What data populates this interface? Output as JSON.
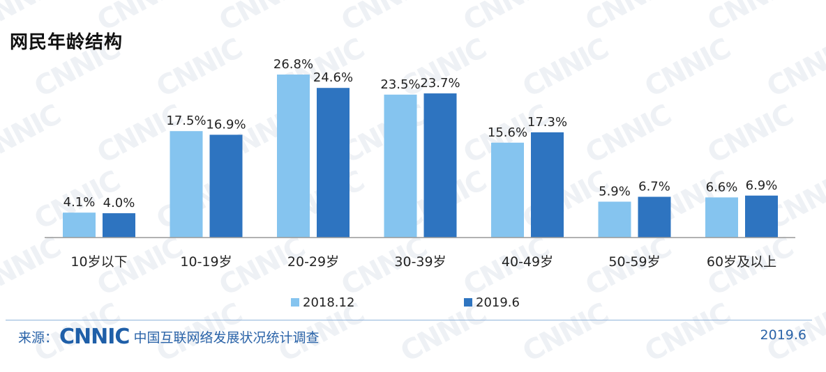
{
  "title": "网民年龄结构",
  "watermark": "CNNIC",
  "footer": {
    "source_label": "来源：",
    "logo_text": "CNNIC",
    "source_text": "中国互联网络发展状况统计调查",
    "date": "2019.6"
  },
  "colors": {
    "series1": "#85c4ef",
    "series2": "#2e74c0",
    "axis": "#999999",
    "footer": "#2a63a8"
  },
  "chart_data": {
    "type": "bar",
    "categories": [
      "10岁以下",
      "10-19岁",
      "20-29岁",
      "30-39岁",
      "40-49岁",
      "50-59岁",
      "60岁及以上"
    ],
    "series": [
      {
        "name": "2018.12",
        "values": [
          4.1,
          17.5,
          26.8,
          23.5,
          15.6,
          5.9,
          6.6
        ],
        "labels": [
          "4.1%",
          "17.5%",
          "26.8%",
          "23.5%",
          "15.6%",
          "5.9%",
          "6.6%"
        ]
      },
      {
        "name": "2019.6",
        "values": [
          4.0,
          16.9,
          24.6,
          23.7,
          17.3,
          6.7,
          6.9
        ],
        "labels": [
          "4.0%",
          "16.9%",
          "24.6%",
          "23.7%",
          "17.3%",
          "6.7%",
          "6.9%"
        ]
      }
    ],
    "ylim": [
      0,
      26.8
    ],
    "legend": "bottom-center",
    "grid": false
  }
}
